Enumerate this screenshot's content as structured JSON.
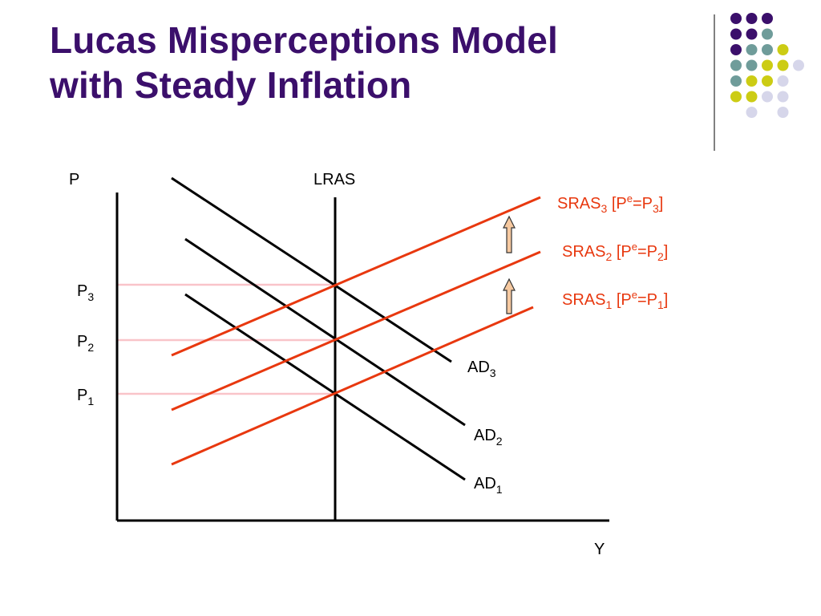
{
  "slide": {
    "title_line1": "Lucas Misperceptions Model",
    "title_line2": "with Steady Inflation"
  },
  "colors": {
    "title": "#3b0f6b",
    "sras": "#e8380f",
    "ad": "#000000",
    "guide": "#f9c4c9",
    "arrow_fill": "#f6c9a0",
    "dot_purple": "#3b0f6b",
    "dot_teal": "#6f9c9a",
    "dot_yellow": "#cccc14",
    "dot_lavender": "#d6d6ea"
  },
  "axes": {
    "y_label": "P",
    "x_label": "Y"
  },
  "lras": {
    "label": "LRAS"
  },
  "price_levels": [
    {
      "base": "P",
      "sub": "3"
    },
    {
      "base": "P",
      "sub": "2"
    },
    {
      "base": "P",
      "sub": "1"
    }
  ],
  "sras_curves": [
    {
      "base": "SRAS",
      "sub": "3",
      "pre": " [P",
      "sup": "e",
      "eq": "=P",
      "sub2": "3",
      "post": "]"
    },
    {
      "base": "SRAS",
      "sub": "2",
      "pre": " [P",
      "sup": "e",
      "eq": "=P",
      "sub2": "2",
      "post": "]"
    },
    {
      "base": "SRAS",
      "sub": "1",
      "pre": " [P",
      "sup": "e",
      "eq": "=P",
      "sub2": "1",
      "post": "]"
    }
  ],
  "ad_curves": [
    {
      "base": "AD",
      "sub": "3"
    },
    {
      "base": "AD",
      "sub": "2"
    },
    {
      "base": "AD",
      "sub": "1"
    }
  ],
  "decoration_dots": [
    [
      "purple",
      "purple",
      "purple",
      null
    ],
    [
      "purple",
      "purple",
      "teal",
      null
    ],
    [
      "purple",
      "teal",
      "teal",
      "yellow"
    ],
    [
      "teal",
      "teal",
      "yellow",
      "yellow",
      "lavender"
    ],
    [
      "teal",
      "yellow",
      "yellow",
      "lavender"
    ],
    [
      "yellow",
      "yellow",
      "lavender",
      "lavender"
    ],
    [
      null,
      "lavender",
      null,
      "lavender"
    ]
  ]
}
